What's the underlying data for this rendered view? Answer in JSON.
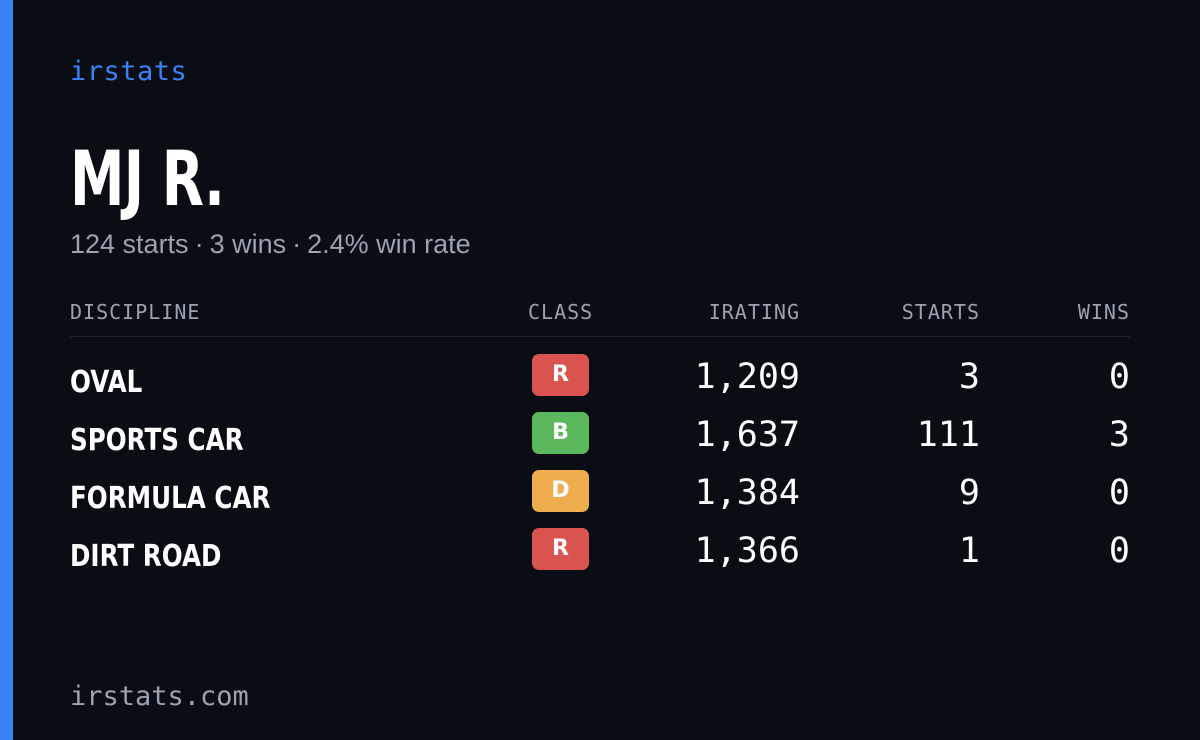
{
  "brand": "irstats",
  "player": {
    "name": "MJ R.",
    "starts_text": "124 starts",
    "wins_text": "3 wins",
    "win_rate_text": "2.4% win rate",
    "separator": "·"
  },
  "table": {
    "headers": {
      "discipline": "DISCIPLINE",
      "class": "CLASS",
      "irating": "IRATING",
      "starts": "STARTS",
      "wins": "WINS"
    },
    "rows": [
      {
        "discipline": "OVAL",
        "class": "R",
        "class_color": "#d9534f",
        "irating": "1,209",
        "starts": "3",
        "wins": "0"
      },
      {
        "discipline": "SPORTS CAR",
        "class": "B",
        "class_color": "#5cb85c",
        "irating": "1,637",
        "starts": "111",
        "wins": "3"
      },
      {
        "discipline": "FORMULA CAR",
        "class": "D",
        "class_color": "#f0ad4e",
        "irating": "1,384",
        "starts": "9",
        "wins": "0"
      },
      {
        "discipline": "DIRT ROAD",
        "class": "R",
        "class_color": "#d9534f",
        "irating": "1,366",
        "starts": "1",
        "wins": "0"
      }
    ]
  },
  "footer": {
    "url": "irstats.com"
  },
  "colors": {
    "background": "#0a0d14",
    "accent": "#3b82f6",
    "muted_text": "#9aa3b2"
  }
}
